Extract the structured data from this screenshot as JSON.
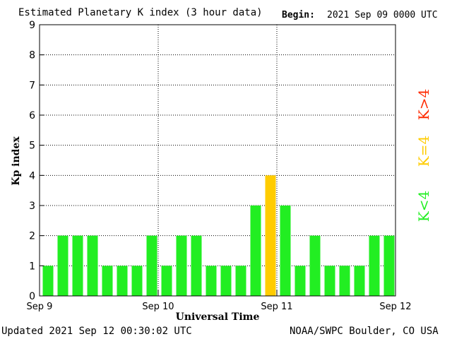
{
  "header": {
    "title": "Estimated Planetary K index (3 hour data)",
    "begin_label": "Begin:",
    "begin_value": "2021 Sep 09 0000 UTC"
  },
  "footer": {
    "updated": "Updated 2021 Sep 12 00:30:02 UTC",
    "credit": "NOAA/SWPC Boulder, CO USA"
  },
  "legend": {
    "high": {
      "label": "K>4",
      "color": "#ff2a00"
    },
    "equal": {
      "label": "K=4",
      "color": "#ffcc00"
    },
    "low": {
      "label": "K<4",
      "color": "#22ee22"
    }
  },
  "chart_data": {
    "type": "bar",
    "title": "Estimated Planetary K index (3 hour data)",
    "xlabel": "Universal Time",
    "ylabel": "Kp index",
    "ylim": [
      0,
      9
    ],
    "yticks": [
      0,
      1,
      2,
      3,
      4,
      5,
      6,
      7,
      8,
      9
    ],
    "x_tick_labels": [
      "Sep 9",
      "Sep 10",
      "Sep 11",
      "Sep 12"
    ],
    "intervals_per_day": 8,
    "grid": true,
    "values": [
      1,
      2,
      2,
      2,
      1,
      1,
      1,
      2,
      1,
      2,
      2,
      1,
      1,
      1,
      3,
      4,
      3,
      1,
      2,
      1,
      1,
      1,
      2,
      2
    ],
    "colors": {
      "below": "#22ee22",
      "equal": "#ffcc00",
      "above": "#ff2a00"
    }
  }
}
